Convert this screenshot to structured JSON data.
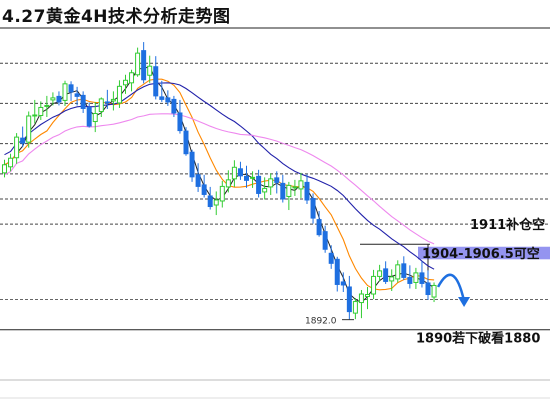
{
  "title": "4.27黄金4H技术分析走势图",
  "colors": {
    "bull": "#33cc33",
    "bear": "#1e6fe0",
    "ma_fast": "#222222",
    "ma_mid": "#ff8800",
    "ma_slow": "#2222aa",
    "ma_long": "#ee88ee",
    "highlight": "#8888ee",
    "arrow": "#1e6fe0"
  },
  "chart_data": {
    "type": "candlestick",
    "title": "4.27黄金4H技术分析走势图",
    "ylim": [
      1880,
      1950
    ],
    "annotations": [
      {
        "label": "1911补仓空",
        "price": 1911
      },
      {
        "label": "1904-1906.5可空",
        "price": 1905
      },
      {
        "label": "1890若下破看1880",
        "price": 1890
      }
    ],
    "low_label": "1892.0",
    "candles": [
      [
        1921.2,
        1923.8,
        1920.3,
        1922.8
      ],
      [
        1922.4,
        1925.0,
        1921.5,
        1924.1
      ],
      [
        1924.2,
        1929.1,
        1923.0,
        1928.3
      ],
      [
        1928.1,
        1930.4,
        1926.3,
        1927.1
      ],
      [
        1927.3,
        1933.4,
        1926.2,
        1932.5
      ],
      [
        1932.6,
        1935.7,
        1931.0,
        1932.7
      ],
      [
        1932.6,
        1935.4,
        1931.7,
        1934.2
      ],
      [
        1934.6,
        1936.5,
        1932.3,
        1934.6
      ],
      [
        1935.7,
        1937.2,
        1934.6,
        1936.1
      ],
      [
        1936.4,
        1937.4,
        1934.6,
        1935.3
      ],
      [
        1935.6,
        1939.5,
        1934.5,
        1938.9
      ],
      [
        1938.7,
        1939.4,
        1935.5,
        1937.3
      ],
      [
        1936.9,
        1938.3,
        1934.6,
        1936.4
      ],
      [
        1936.6,
        1937.4,
        1933.1,
        1934.0
      ],
      [
        1934.2,
        1935.2,
        1930.2,
        1930.5
      ],
      [
        1931.4,
        1935.3,
        1929.3,
        1933.0
      ],
      [
        1933.4,
        1936.2,
        1932.3,
        1935.9
      ],
      [
        1935.3,
        1937.7,
        1933.9,
        1935.1
      ],
      [
        1935.5,
        1937.4,
        1933.6,
        1935.8
      ],
      [
        1935.1,
        1939.6,
        1934.1,
        1938.4
      ],
      [
        1938.7,
        1940.7,
        1936.9,
        1939.6
      ],
      [
        1939.1,
        1941.7,
        1937.4,
        1941.1
      ],
      [
        1940.7,
        1946.1,
        1940.3,
        1945.0
      ],
      [
        1945.5,
        1947.2,
        1939.0,
        1939.7
      ],
      [
        1940.6,
        1944.5,
        1939.1,
        1942.4
      ],
      [
        1942.3,
        1944.4,
        1935.8,
        1936.5
      ],
      [
        1936.3,
        1939.5,
        1935.3,
        1935.8
      ],
      [
        1936.1,
        1937.6,
        1934.5,
        1935.3
      ],
      [
        1935.8,
        1936.5,
        1932.3,
        1933.1
      ],
      [
        1933.1,
        1935.7,
        1929.0,
        1929.6
      ],
      [
        1929.5,
        1930.3,
        1924.6,
        1925.0
      ],
      [
        1925.3,
        1925.8,
        1919.4,
        1920.4
      ],
      [
        1920.8,
        1923.1,
        1917.4,
        1918.5
      ],
      [
        1918.8,
        1920.8,
        1916.3,
        1916.9
      ],
      [
        1916.6,
        1918.4,
        1913.9,
        1914.5
      ],
      [
        1914.8,
        1917.5,
        1912.8,
        1915.8
      ],
      [
        1915.6,
        1919.6,
        1914.3,
        1918.5
      ],
      [
        1918.4,
        1921.7,
        1917.3,
        1919.8
      ],
      [
        1920.0,
        1923.7,
        1918.4,
        1922.3
      ],
      [
        1922.0,
        1923.4,
        1919.8,
        1920.6
      ],
      [
        1920.5,
        1922.6,
        1918.2,
        1919.7
      ],
      [
        1920.3,
        1921.5,
        1918.2,
        1920.3
      ],
      [
        1920.5,
        1921.8,
        1916.3,
        1917.1
      ],
      [
        1917.4,
        1920.3,
        1915.9,
        1918.1
      ],
      [
        1918.4,
        1921.1,
        1916.8,
        1920.0
      ],
      [
        1920.2,
        1921.5,
        1917.1,
        1919.3
      ],
      [
        1919.1,
        1920.8,
        1915.3,
        1916.0
      ],
      [
        1916.5,
        1919.4,
        1913.8,
        1918.7
      ],
      [
        1918.4,
        1919.8,
        1916.6,
        1918.4
      ],
      [
        1918.0,
        1921.2,
        1916.2,
        1919.6
      ],
      [
        1919.3,
        1920.9,
        1915.0,
        1915.8
      ],
      [
        1916.1,
        1917.1,
        1911.1,
        1912.2
      ],
      [
        1911.9,
        1913.6,
        1908.5,
        1908.9
      ],
      [
        1909.5,
        1910.7,
        1905.3,
        1906.0
      ],
      [
        1905.2,
        1906.8,
        1902.1,
        1903.2
      ],
      [
        1904.0,
        1904.5,
        1897.6,
        1899.0
      ],
      [
        1899.5,
        1901.4,
        1897.5,
        1898.9
      ],
      [
        1898.5,
        1900.7,
        1892.0,
        1893.6
      ],
      [
        1893.3,
        1896.3,
        1892.1,
        1895.6
      ],
      [
        1895.4,
        1897.9,
        1892.3,
        1897.1
      ],
      [
        1896.6,
        1898.5,
        1894.1,
        1897.0
      ],
      [
        1897.1,
        1901.9,
        1896.1,
        1900.6
      ],
      [
        1900.6,
        1902.9,
        1899.6,
        1901.7
      ],
      [
        1902.1,
        1903.6,
        1899.1,
        1899.6
      ],
      [
        1899.7,
        1902.0,
        1897.7,
        1900.5
      ],
      [
        1900.1,
        1903.8,
        1899.4,
        1902.9
      ],
      [
        1903.1,
        1904.6,
        1899.9,
        1900.4
      ],
      [
        1900.4,
        1902.8,
        1898.2,
        1899.2
      ],
      [
        1899.4,
        1902.3,
        1898.1,
        1901.3
      ],
      [
        1901.3,
        1903.6,
        1898.4,
        1899.2
      ],
      [
        1899.3,
        1901.8,
        1895.9,
        1897.0
      ],
      [
        1896.5,
        1899.4,
        1895.5,
        1898.8
      ]
    ]
  }
}
